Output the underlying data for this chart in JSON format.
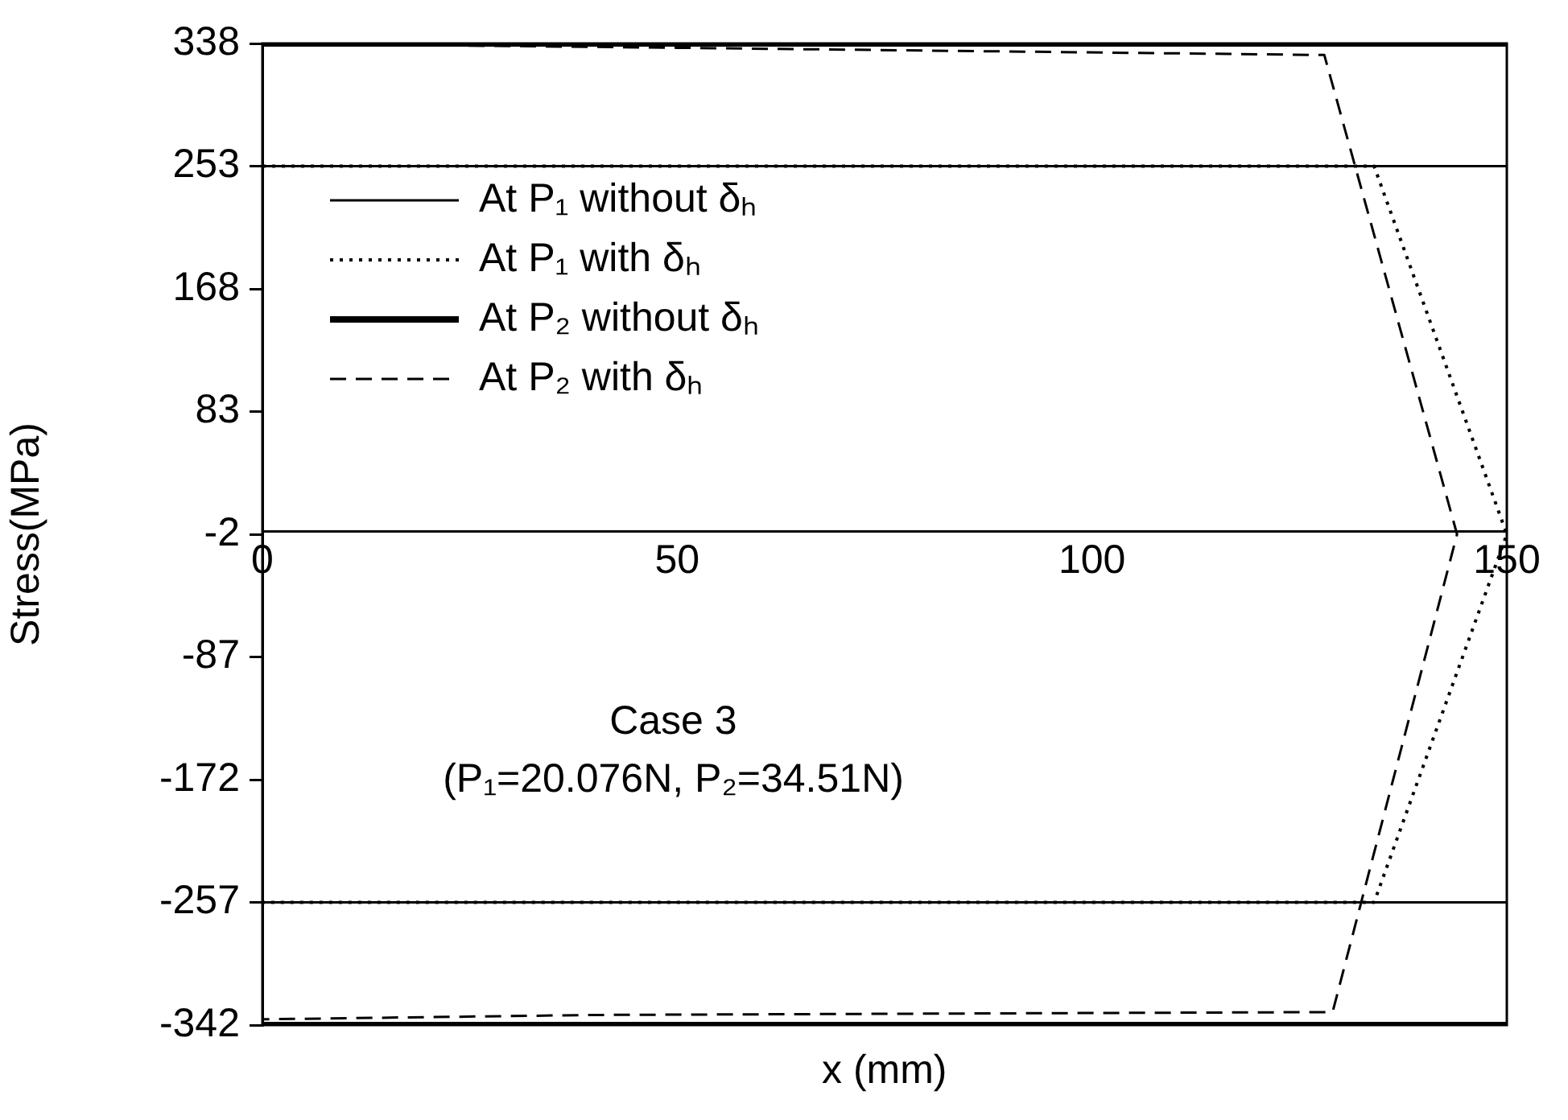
{
  "chart_data": {
    "type": "line",
    "xlabel": "x (mm)",
    "ylabel": "Stress(MPa)",
    "xlim": [
      0,
      150
    ],
    "xticks": [
      0,
      50,
      100,
      150
    ],
    "ylim": [
      -342,
      338
    ],
    "yticks": [
      338,
      253,
      168,
      83,
      -2,
      -87,
      -172,
      -257,
      -342
    ],
    "legend": "top left",
    "marker": "none",
    "grid": false,
    "annotations": [
      "Case 3",
      "(P₁=20.076N, P₂=34.51N)"
    ],
    "series": [
      {
        "name": "At P₁ without δₕ",
        "color": "#000000",
        "line_style": "solid",
        "x": [
          0,
          150
        ],
        "values": [
          253,
          253
        ]
      },
      {
        "name": "At P₁ with δₕ",
        "color": "#000000",
        "line_style": "dotted",
        "x": [
          0,
          134,
          150,
          134,
          0
        ],
        "values": [
          253,
          253,
          -2,
          -257,
          -257
        ]
      },
      {
        "name": "At P₂ without δₕ",
        "color": "#000000",
        "line_style": "solid",
        "x": [
          0,
          150
        ],
        "values": [
          338,
          338
        ]
      },
      {
        "name": "At P₂ with δₕ",
        "color": "#000000",
        "line_style": "dashed",
        "x": [
          0,
          50,
          128,
          144,
          129,
          40,
          0
        ],
        "values": [
          338,
          335,
          330,
          -2,
          -333,
          -335,
          -338
        ]
      },
      {
        "color": "#000000",
        "line_style": "solid",
        "x": [
          0,
          150
        ],
        "values": [
          -257,
          -257
        ]
      },
      {
        "color": "#000000",
        "line_style": "solid",
        "x": [
          0,
          150
        ],
        "values": [
          -342,
          -342
        ]
      }
    ]
  }
}
